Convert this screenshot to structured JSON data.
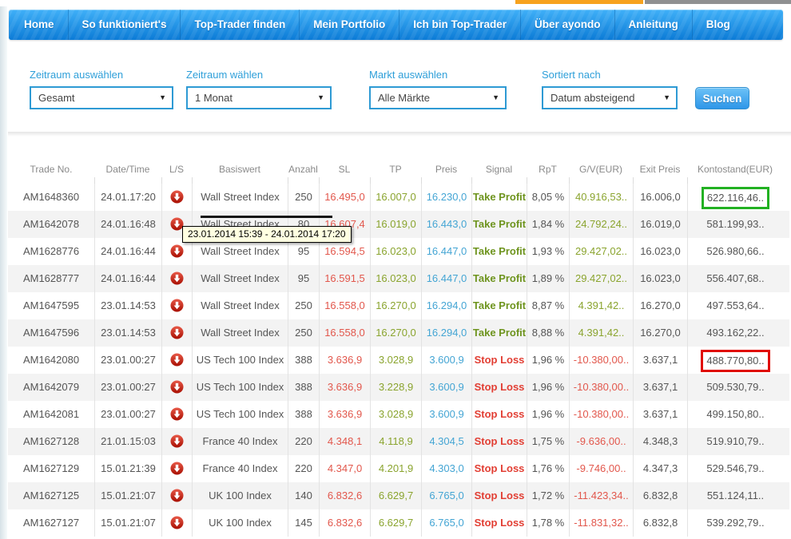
{
  "top_bars": {
    "orange_color": "#f7a21e",
    "gray_color": "#8f9091"
  },
  "nav": {
    "items": [
      "Home",
      "So funktioniert's",
      "Top-Trader finden",
      "Mein Portfolio",
      "Ich bin Top-Trader",
      "Über ayondo",
      "Anleitung",
      "Blog"
    ]
  },
  "filters": [
    {
      "label": "Zeitraum auswählen",
      "value": "Gesamt"
    },
    {
      "label": "Zeitraum wählen",
      "value": "1 Monat"
    },
    {
      "label": "Markt auswählen",
      "value": "Alle Märkte"
    },
    {
      "label": "Sortiert nach",
      "value": "Datum absteigend"
    }
  ],
  "search_button_label": "Suchen",
  "tooltip_text": "23.01.2014 15:39 - 24.01.2014 17:20",
  "colors": {
    "accent_blue": "#2e9fd9",
    "nav_blue_top": "#3fb0f8",
    "nav_blue_bottom": "#0c7bd6",
    "sl_red": "#e2574c",
    "tp_green": "#8aa42e",
    "price_blue": "#44a5d4",
    "signal_take_profit": "#6e941e",
    "signal_stop_loss": "#e23e33",
    "short_icon_red": "#c6170a",
    "highlight_green_box": "#22b122",
    "highlight_red_box": "#e00b05"
  },
  "table": {
    "columns": [
      "Trade No.",
      "Date/Time",
      "L/S",
      "Basiswert",
      "Anzahl",
      "SL",
      "TP",
      "Preis",
      "Signal",
      "RpT",
      "G/V(EUR)",
      "Exit Preis",
      "Kontostand(EUR)"
    ],
    "rows": [
      {
        "trade_no": "AM1648360",
        "date_time": "24.01.17:20",
        "ls": "short",
        "basiswert": "Wall Street Index",
        "anzahl": "250",
        "sl": "16.495,0",
        "tp": "16.007,0",
        "preis": "16.230,0",
        "signal": "Take Profit",
        "rpt": "8,05 %",
        "gv": "40.916,53..",
        "exit_preis": "16.006,0",
        "kontostand": "622.116,46..",
        "highlight": "green"
      },
      {
        "trade_no": "AM1642078",
        "date_time": "24.01.16:48",
        "ls": "short",
        "basiswert": "Wall Street Index",
        "anzahl": "80",
        "sl": "16.607,4",
        "tp": "16.019,0",
        "preis": "16.443,0",
        "signal": "Take Profit",
        "rpt": "1,84 %",
        "gv": "24.792,24..",
        "exit_preis": "16.019,0",
        "kontostand": "581.199,93..",
        "highlight": null
      },
      {
        "trade_no": "AM1628776",
        "date_time": "24.01.16:44",
        "ls": "short",
        "basiswert": "Wall Street Index",
        "anzahl": "95",
        "sl": "16.594,5",
        "tp": "16.023,0",
        "preis": "16.447,0",
        "signal": "Take Profit",
        "rpt": "1,93 %",
        "gv": "29.427,02..",
        "exit_preis": "16.023,0",
        "kontostand": "526.980,66..",
        "highlight": null
      },
      {
        "trade_no": "AM1628777",
        "date_time": "24.01.16:44",
        "ls": "short",
        "basiswert": "Wall Street Index",
        "anzahl": "95",
        "sl": "16.591,5",
        "tp": "16.023,0",
        "preis": "16.447,0",
        "signal": "Take Profit",
        "rpt": "1,89 %",
        "gv": "29.427,02..",
        "exit_preis": "16.023,0",
        "kontostand": "556.407,68..",
        "highlight": null
      },
      {
        "trade_no": "AM1647595",
        "date_time": "23.01.14:53",
        "ls": "short",
        "basiswert": "Wall Street Index",
        "anzahl": "250",
        "sl": "16.558,0",
        "tp": "16.270,0",
        "preis": "16.294,0",
        "signal": "Take Profit",
        "rpt": "8,87 %",
        "gv": "4.391,42..",
        "exit_preis": "16.270,0",
        "kontostand": "497.553,64..",
        "highlight": null
      },
      {
        "trade_no": "AM1647596",
        "date_time": "23.01.14:53",
        "ls": "short",
        "basiswert": "Wall Street Index",
        "anzahl": "250",
        "sl": "16.558,0",
        "tp": "16.270,0",
        "preis": "16.294,0",
        "signal": "Take Profit",
        "rpt": "8,88 %",
        "gv": "4.391,42..",
        "exit_preis": "16.270,0",
        "kontostand": "493.162,22..",
        "highlight": null
      },
      {
        "trade_no": "AM1642080",
        "date_time": "23.01.00:27",
        "ls": "short",
        "basiswert": "US Tech 100 Index",
        "anzahl": "388",
        "sl": "3.636,9",
        "tp": "3.028,9",
        "preis": "3.600,9",
        "signal": "Stop Loss",
        "rpt": "1,96 %",
        "gv": "-10.380,00..",
        "exit_preis": "3.637,1",
        "kontostand": "488.770,80..",
        "highlight": "red"
      },
      {
        "trade_no": "AM1642079",
        "date_time": "23.01.00:27",
        "ls": "short",
        "basiswert": "US Tech 100 Index",
        "anzahl": "388",
        "sl": "3.636,9",
        "tp": "3.228,9",
        "preis": "3.600,9",
        "signal": "Stop Loss",
        "rpt": "1,96 %",
        "gv": "-10.380,00..",
        "exit_preis": "3.637,1",
        "kontostand": "509.530,79..",
        "highlight": null
      },
      {
        "trade_no": "AM1642081",
        "date_time": "23.01.00:27",
        "ls": "short",
        "basiswert": "US Tech 100 Index",
        "anzahl": "388",
        "sl": "3.636,9",
        "tp": "3.028,9",
        "preis": "3.600,9",
        "signal": "Stop Loss",
        "rpt": "1,96 %",
        "gv": "-10.380,00..",
        "exit_preis": "3.637,1",
        "kontostand": "499.150,80..",
        "highlight": null
      },
      {
        "trade_no": "AM1627128",
        "date_time": "21.01.15:03",
        "ls": "short",
        "basiswert": "France 40 Index",
        "anzahl": "220",
        "sl": "4.348,1",
        "tp": "4.118,9",
        "preis": "4.304,5",
        "signal": "Stop Loss",
        "rpt": "1,75 %",
        "gv": "-9.636,00..",
        "exit_preis": "4.348,3",
        "kontostand": "519.910,79..",
        "highlight": null
      },
      {
        "trade_no": "AM1627129",
        "date_time": "15.01.21:39",
        "ls": "short",
        "basiswert": "France 40 Index",
        "anzahl": "220",
        "sl": "4.347,0",
        "tp": "4.201,9",
        "preis": "4.303,0",
        "signal": "Stop Loss",
        "rpt": "1,76 %",
        "gv": "-9.746,00..",
        "exit_preis": "4.347,3",
        "kontostand": "529.546,79..",
        "highlight": null
      },
      {
        "trade_no": "AM1627125",
        "date_time": "15.01.21:07",
        "ls": "short",
        "basiswert": "UK 100 Index",
        "anzahl": "140",
        "sl": "6.832,6",
        "tp": "6.629,7",
        "preis": "6.765,0",
        "signal": "Stop Loss",
        "rpt": "1,72 %",
        "gv": "-11.423,34..",
        "exit_preis": "6.832,8",
        "kontostand": "551.124,11..",
        "highlight": null
      },
      {
        "trade_no": "AM1627127",
        "date_time": "15.01.21:07",
        "ls": "short",
        "basiswert": "UK 100 Index",
        "anzahl": "145",
        "sl": "6.832,6",
        "tp": "6.629,7",
        "preis": "6.765,0",
        "signal": "Stop Loss",
        "rpt": "1,78 %",
        "gv": "-11.831,32..",
        "exit_preis": "6.832,8",
        "kontostand": "539.292,79..",
        "highlight": null
      }
    ]
  }
}
